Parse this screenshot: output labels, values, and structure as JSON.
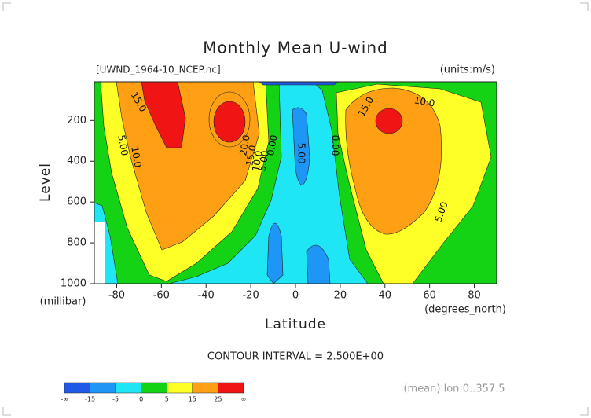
{
  "chart_data": {
    "type": "contour",
    "title": "Monthly Mean U-wind",
    "subtitle": "[UWND_1964-10_NCEP.nc]",
    "units": "(units:m/s)",
    "x_label": "Latitude",
    "x_unit": "(degrees_north)",
    "y_label": "Level",
    "y_unit": "(millibar)",
    "xlim": [
      -90,
      90
    ],
    "ylim": [
      1000,
      10
    ],
    "xticks": [
      -80,
      -60,
      -40,
      -20,
      0,
      20,
      40,
      60,
      80
    ],
    "yticks": [
      200,
      400,
      600,
      800,
      1000
    ],
    "contour_labels": [
      "15.0",
      "10.0",
      "5.00",
      "20.0",
      "15.0",
      "10.0",
      "5.00",
      "0.00",
      "5.00",
      "0.00",
      "15.0",
      "10.0",
      "5.00"
    ],
    "footer": "CONTOUR INTERVAL = 2.500E+00",
    "note": "(mean) lon:0..357.5",
    "colorbar": {
      "labels": [
        "-∞",
        "-15",
        "-5",
        "0",
        "5",
        "15",
        "25",
        "∞"
      ],
      "colors": [
        "#1e5ae6",
        "#1e96f5",
        "#1ee6f5",
        "#14d214",
        "#ffff28",
        "#ffa014",
        "#f01414"
      ]
    }
  }
}
